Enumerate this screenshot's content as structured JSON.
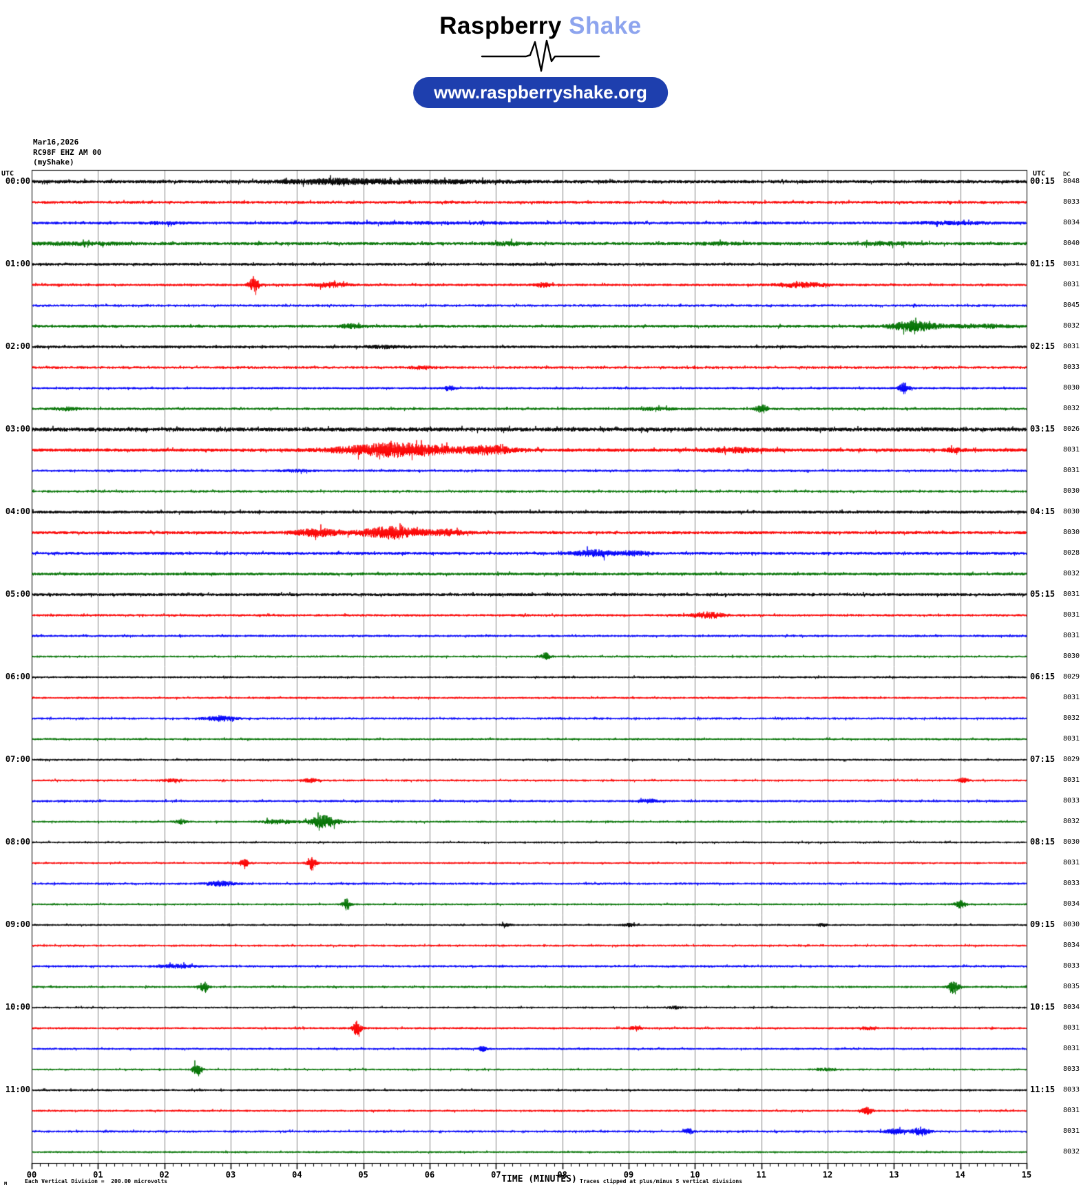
{
  "header": {
    "logo_primary": "Raspberry",
    "logo_accent": "Shake",
    "accent_color": "#8da4ee",
    "pill_label": "www.raspberryshake.org",
    "pill_color": "#1e3fae"
  },
  "station": {
    "date": "Mar16,2026",
    "id": "RC98F EHZ AM 00",
    "network": "(myShake)"
  },
  "plot": {
    "left_axis_header": "UTC",
    "right_axis_header": "UTC",
    "dc_header": "DC",
    "xlabel": "TIME (MINUTES)",
    "clip_note": "Traces clipped at plus/minus 5 vertical divisions",
    "scale_note": "Each Vertical Division =  200.00 microvolts",
    "scale_prefix": "M",
    "x_ticks": [
      "00",
      "01",
      "02",
      "03",
      "04",
      "05",
      "06",
      "07",
      "08",
      "09",
      "10",
      "11",
      "12",
      "13",
      "14",
      "15"
    ],
    "colors": {
      "black": "#000000",
      "red": "#fb0000",
      "blue": "#0000fa",
      "green": "#007200",
      "grid": "#858585"
    }
  },
  "chart_data": {
    "type": "line",
    "title": "RC98F EHZ AM 00 helicorder, 15 minutes per line, 48 lines (00:00-12:00 UTC)",
    "xlabel": "TIME (MINUTES)",
    "x_range_minutes": [
      0,
      15
    ],
    "minutes_per_row": 15,
    "microvolts_per_division": 200.0,
    "clip_divisions": 5,
    "rows": [
      {
        "utc_left": "00:00",
        "utc_right": "00:15",
        "color": "black",
        "dc": "8048",
        "amp": 2.3,
        "events": [
          {
            "t": 4.5,
            "w": 0.9,
            "a": 2.5
          },
          {
            "t": 5.8,
            "w": 1.6,
            "a": 1.8
          }
        ]
      },
      {
        "utc_left": null,
        "utc_right": null,
        "color": "red",
        "dc": "8033",
        "amp": 1.9,
        "events": []
      },
      {
        "utc_left": null,
        "utc_right": null,
        "color": "blue",
        "dc": "8034",
        "amp": 1.9,
        "events": [
          {
            "t": 2.0,
            "w": 0.4,
            "a": 1.2
          },
          {
            "t": 6.0,
            "w": 2.0,
            "a": 0.8
          },
          {
            "t": 13.9,
            "w": 0.7,
            "a": 1.6
          }
        ]
      },
      {
        "utc_left": null,
        "utc_right": null,
        "color": "green",
        "dc": "8040",
        "amp": 2.2,
        "events": [
          {
            "t": 0.7,
            "w": 0.8,
            "a": 1.4
          },
          {
            "t": 7.2,
            "w": 0.3,
            "a": 1.8
          },
          {
            "t": 10.4,
            "w": 0.4,
            "a": 1.2
          },
          {
            "t": 12.9,
            "w": 0.5,
            "a": 1.6
          }
        ]
      },
      {
        "utc_left": "01:00",
        "utc_right": "01:15",
        "color": "black",
        "dc": "8031",
        "amp": 1.9,
        "events": []
      },
      {
        "utc_left": null,
        "utc_right": null,
        "color": "red",
        "dc": "8031",
        "amp": 1.7,
        "events": [
          {
            "t": 3.35,
            "w": 0.1,
            "a": 9
          },
          {
            "t": 4.5,
            "w": 0.3,
            "a": 3
          },
          {
            "t": 7.7,
            "w": 0.15,
            "a": 2.5
          },
          {
            "t": 11.6,
            "w": 0.5,
            "a": 2.8
          }
        ]
      },
      {
        "utc_left": null,
        "utc_right": null,
        "color": "blue",
        "dc": "8045",
        "amp": 1.6,
        "events": []
      },
      {
        "utc_left": null,
        "utc_right": null,
        "color": "green",
        "dc": "8032",
        "amp": 1.9,
        "events": [
          {
            "t": 4.8,
            "w": 0.2,
            "a": 2.5
          },
          {
            "t": 13.3,
            "w": 0.4,
            "a": 7
          },
          {
            "t": 14.3,
            "w": 0.6,
            "a": 2
          }
        ]
      },
      {
        "utc_left": "02:00",
        "utc_right": "02:15",
        "color": "black",
        "dc": "8031",
        "amp": 1.9,
        "events": [
          {
            "t": 5.3,
            "w": 0.4,
            "a": 1.5
          }
        ]
      },
      {
        "utc_left": null,
        "utc_right": null,
        "color": "red",
        "dc": "8033",
        "amp": 1.7,
        "events": [
          {
            "t": 5.9,
            "w": 0.25,
            "a": 2
          }
        ]
      },
      {
        "utc_left": null,
        "utc_right": null,
        "color": "blue",
        "dc": "8030",
        "amp": 1.5,
        "events": [
          {
            "t": 6.3,
            "w": 0.07,
            "a": 4
          },
          {
            "t": 13.15,
            "w": 0.09,
            "a": 8
          }
        ]
      },
      {
        "utc_left": null,
        "utc_right": null,
        "color": "green",
        "dc": "8032",
        "amp": 1.7,
        "events": [
          {
            "t": 0.5,
            "w": 0.25,
            "a": 1.8
          },
          {
            "t": 9.4,
            "w": 0.35,
            "a": 1.5
          },
          {
            "t": 11.0,
            "w": 0.1,
            "a": 6
          }
        ]
      },
      {
        "utc_left": "03:00",
        "utc_right": "03:15",
        "color": "black",
        "dc": "8026",
        "amp": 2.8,
        "events": []
      },
      {
        "utc_left": null,
        "utc_right": null,
        "color": "red",
        "dc": "8031",
        "amp": 2.4,
        "events": [
          {
            "t": 5.5,
            "w": 1.0,
            "a": 9
          },
          {
            "t": 6.9,
            "w": 0.45,
            "a": 5
          },
          {
            "t": 10.6,
            "w": 0.5,
            "a": 2.5
          },
          {
            "t": 13.9,
            "w": 0.15,
            "a": 2
          }
        ]
      },
      {
        "utc_left": null,
        "utc_right": null,
        "color": "blue",
        "dc": "8031",
        "amp": 1.6,
        "events": [
          {
            "t": 4.0,
            "w": 0.3,
            "a": 1.2
          }
        ]
      },
      {
        "utc_left": null,
        "utc_right": null,
        "color": "green",
        "dc": "8030",
        "amp": 1.6,
        "events": []
      },
      {
        "utc_left": "04:00",
        "utc_right": "04:15",
        "color": "black",
        "dc": "8030",
        "amp": 2.1,
        "events": []
      },
      {
        "utc_left": null,
        "utc_right": null,
        "color": "red",
        "dc": "8030",
        "amp": 2.1,
        "events": [
          {
            "t": 4.3,
            "w": 0.4,
            "a": 5
          },
          {
            "t": 5.45,
            "w": 0.6,
            "a": 8
          },
          {
            "t": 6.3,
            "w": 0.3,
            "a": 3
          }
        ]
      },
      {
        "utc_left": null,
        "utc_right": null,
        "color": "blue",
        "dc": "8028",
        "amp": 2.0,
        "events": [
          {
            "t": 8.5,
            "w": 0.4,
            "a": 4
          },
          {
            "t": 9.1,
            "w": 0.25,
            "a": 2.5
          }
        ]
      },
      {
        "utc_left": null,
        "utc_right": null,
        "color": "green",
        "dc": "8032",
        "amp": 2.0,
        "events": []
      },
      {
        "utc_left": "05:00",
        "utc_right": "05:15",
        "color": "black",
        "dc": "8031",
        "amp": 2.1,
        "events": []
      },
      {
        "utc_left": null,
        "utc_right": null,
        "color": "red",
        "dc": "8031",
        "amp": 1.6,
        "events": [
          {
            "t": 10.2,
            "w": 0.3,
            "a": 4
          }
        ]
      },
      {
        "utc_left": null,
        "utc_right": null,
        "color": "blue",
        "dc": "8031",
        "amp": 1.5,
        "events": []
      },
      {
        "utc_left": null,
        "utc_right": null,
        "color": "green",
        "dc": "8030",
        "amp": 1.4,
        "events": [
          {
            "t": 7.75,
            "w": 0.08,
            "a": 5
          }
        ]
      },
      {
        "utc_left": "06:00",
        "utc_right": "06:15",
        "color": "black",
        "dc": "8029",
        "amp": 1.4,
        "events": []
      },
      {
        "utc_left": null,
        "utc_right": null,
        "color": "red",
        "dc": "8031",
        "amp": 1.4,
        "events": []
      },
      {
        "utc_left": null,
        "utc_right": null,
        "color": "blue",
        "dc": "8032",
        "amp": 1.5,
        "events": [
          {
            "t": 2.85,
            "w": 0.25,
            "a": 3.5
          }
        ]
      },
      {
        "utc_left": null,
        "utc_right": null,
        "color": "green",
        "dc": "8031",
        "amp": 1.4,
        "events": []
      },
      {
        "utc_left": "07:00",
        "utc_right": "07:15",
        "color": "black",
        "dc": "8029",
        "amp": 1.4,
        "events": []
      },
      {
        "utc_left": null,
        "utc_right": null,
        "color": "red",
        "dc": "8031",
        "amp": 1.4,
        "events": [
          {
            "t": 2.1,
            "w": 0.12,
            "a": 2
          },
          {
            "t": 4.2,
            "w": 0.12,
            "a": 2.5
          },
          {
            "t": 14.05,
            "w": 0.1,
            "a": 3
          }
        ]
      },
      {
        "utc_left": null,
        "utc_right": null,
        "color": "blue",
        "dc": "8033",
        "amp": 1.5,
        "events": [
          {
            "t": 9.3,
            "w": 0.2,
            "a": 2.2
          }
        ]
      },
      {
        "utc_left": null,
        "utc_right": null,
        "color": "green",
        "dc": "8032",
        "amp": 1.4,
        "events": [
          {
            "t": 2.25,
            "w": 0.1,
            "a": 3
          },
          {
            "t": 3.7,
            "w": 0.25,
            "a": 3
          },
          {
            "t": 4.4,
            "w": 0.25,
            "a": 9
          }
        ]
      },
      {
        "utc_left": "08:00",
        "utc_right": "08:15",
        "color": "black",
        "dc": "8030",
        "amp": 1.3,
        "events": []
      },
      {
        "utc_left": null,
        "utc_right": null,
        "color": "red",
        "dc": "8031",
        "amp": 1.3,
        "events": [
          {
            "t": 3.2,
            "w": 0.1,
            "a": 5
          },
          {
            "t": 4.22,
            "w": 0.08,
            "a": 10
          }
        ]
      },
      {
        "utc_left": null,
        "utc_right": null,
        "color": "blue",
        "dc": "8033",
        "amp": 1.5,
        "events": [
          {
            "t": 2.85,
            "w": 0.25,
            "a": 3.5
          }
        ]
      },
      {
        "utc_left": null,
        "utc_right": null,
        "color": "green",
        "dc": "8034",
        "amp": 1.3,
        "events": [
          {
            "t": 4.75,
            "w": 0.07,
            "a": 8
          },
          {
            "t": 14.0,
            "w": 0.1,
            "a": 5
          }
        ]
      },
      {
        "utc_left": "09:00",
        "utc_right": "09:15",
        "color": "black",
        "dc": "8030",
        "amp": 1.3,
        "events": [
          {
            "t": 7.15,
            "w": 0.1,
            "a": 1.8
          },
          {
            "t": 9.0,
            "w": 0.12,
            "a": 1.8
          },
          {
            "t": 11.9,
            "w": 0.1,
            "a": 1.8
          }
        ]
      },
      {
        "utc_left": null,
        "utc_right": null,
        "color": "red",
        "dc": "8034",
        "amp": 1.4,
        "events": []
      },
      {
        "utc_left": null,
        "utc_right": null,
        "color": "blue",
        "dc": "8033",
        "amp": 1.5,
        "events": [
          {
            "t": 2.2,
            "w": 0.3,
            "a": 2.2
          }
        ]
      },
      {
        "utc_left": null,
        "utc_right": null,
        "color": "green",
        "dc": "8035",
        "amp": 1.4,
        "events": [
          {
            "t": 2.6,
            "w": 0.08,
            "a": 8
          },
          {
            "t": 13.9,
            "w": 0.1,
            "a": 8
          }
        ]
      },
      {
        "utc_left": "10:00",
        "utc_right": "10:15",
        "color": "black",
        "dc": "8034",
        "amp": 1.3,
        "events": [
          {
            "t": 9.7,
            "w": 0.12,
            "a": 1.8
          }
        ]
      },
      {
        "utc_left": null,
        "utc_right": null,
        "color": "red",
        "dc": "8031",
        "amp": 1.4,
        "events": [
          {
            "t": 4.9,
            "w": 0.08,
            "a": 10
          },
          {
            "t": 9.1,
            "w": 0.12,
            "a": 1.8
          },
          {
            "t": 12.6,
            "w": 0.12,
            "a": 1.8
          }
        ]
      },
      {
        "utc_left": null,
        "utc_right": null,
        "color": "blue",
        "dc": "8031",
        "amp": 1.4,
        "events": [
          {
            "t": 6.8,
            "w": 0.07,
            "a": 4
          }
        ]
      },
      {
        "utc_left": null,
        "utc_right": null,
        "color": "green",
        "dc": "8033",
        "amp": 1.3,
        "events": [
          {
            "t": 2.5,
            "w": 0.08,
            "a": 9
          },
          {
            "t": 12.0,
            "w": 0.2,
            "a": 1.6
          }
        ]
      },
      {
        "utc_left": "11:00",
        "utc_right": "11:15",
        "color": "black",
        "dc": "8033",
        "amp": 1.4,
        "events": []
      },
      {
        "utc_left": null,
        "utc_right": null,
        "color": "red",
        "dc": "8031",
        "amp": 1.4,
        "events": [
          {
            "t": 12.6,
            "w": 0.1,
            "a": 5
          }
        ]
      },
      {
        "utc_left": null,
        "utc_right": null,
        "color": "blue",
        "dc": "8031",
        "amp": 1.5,
        "events": [
          {
            "t": 9.9,
            "w": 0.08,
            "a": 4
          },
          {
            "t": 13.0,
            "w": 0.18,
            "a": 3.5
          },
          {
            "t": 13.4,
            "w": 0.15,
            "a": 6
          }
        ]
      },
      {
        "utc_left": null,
        "utc_right": null,
        "color": "green",
        "dc": "8032",
        "amp": 1.3,
        "events": []
      }
    ]
  }
}
